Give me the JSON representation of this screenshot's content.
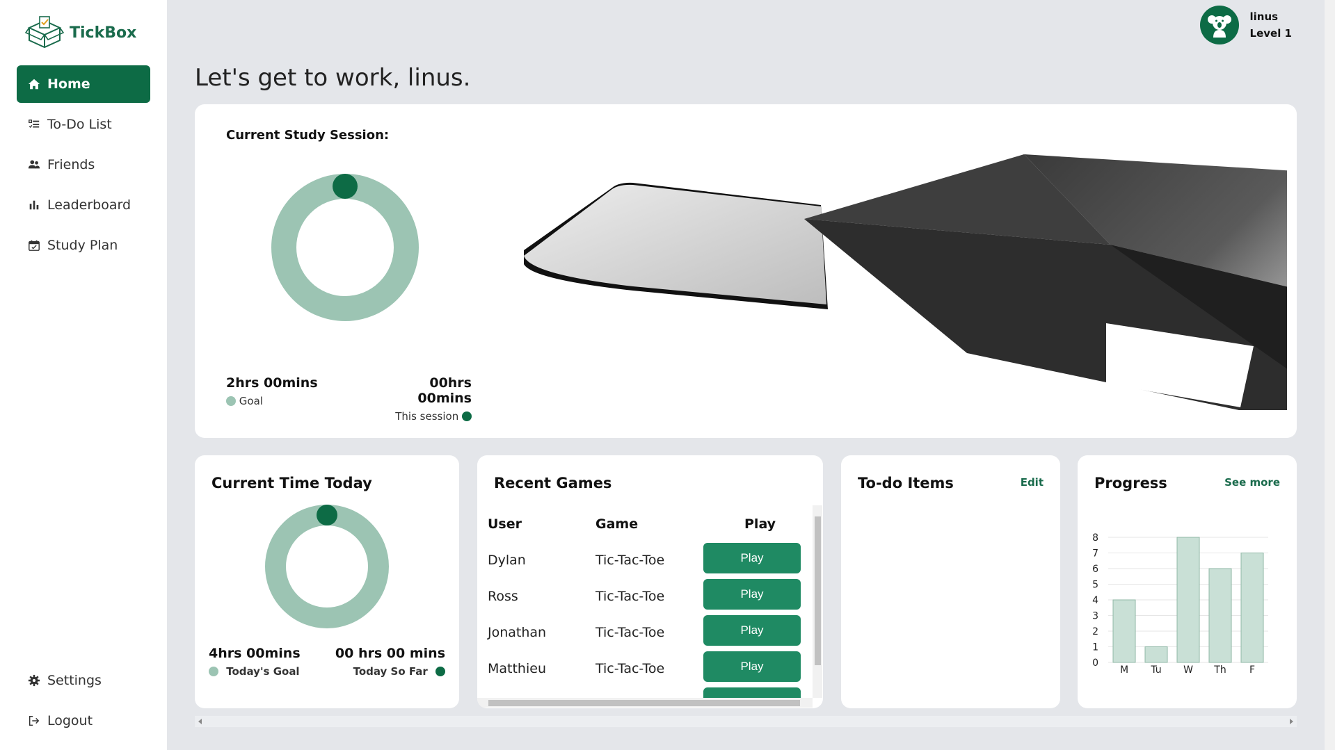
{
  "app": {
    "name": "TickBox"
  },
  "sidebar": {
    "items": [
      {
        "label": "Home",
        "active": true
      },
      {
        "label": "To-Do List"
      },
      {
        "label": "Friends"
      },
      {
        "label": "Leaderboard"
      },
      {
        "label": "Study Plan"
      }
    ],
    "bottom": [
      {
        "label": "Settings"
      },
      {
        "label": "Logout"
      }
    ]
  },
  "user": {
    "name": "linus",
    "level": "Level 1"
  },
  "greeting": "Let's get to work, linus.",
  "session": {
    "title": "Current Study Session:",
    "goal_value": "2hrs 00mins",
    "goal_label": "Goal",
    "session_value": "00hrs 00mins",
    "session_label": "This session",
    "progress": 0
  },
  "today": {
    "title": "Current Time Today",
    "goal_value": "4hrs 00mins",
    "goal_label": "Today's Goal",
    "sofar_value": "00 hrs 00 mins",
    "sofar_label": "Today So Far",
    "progress": 0
  },
  "games": {
    "title": "Recent Games",
    "headers": [
      "User",
      "Game",
      "Play"
    ],
    "rows": [
      {
        "user": "Dylan",
        "game": "Tic-Tac-Toe",
        "action": "Play"
      },
      {
        "user": "Ross",
        "game": "Tic-Tac-Toe",
        "action": "Play"
      },
      {
        "user": "Jonathan",
        "game": "Tic-Tac-Toe",
        "action": "Play"
      },
      {
        "user": "Matthieu",
        "game": "Tic-Tac-Toe",
        "action": "Play"
      }
    ]
  },
  "todo": {
    "title": "To-do Items",
    "edit": "Edit"
  },
  "progress_card": {
    "title": "Progress",
    "see_more": "See more"
  },
  "colors": {
    "primary": "#0d6b45",
    "button": "#1f8a63",
    "ring": "#9cc4b3",
    "bar": "#c9e0d6"
  },
  "chart_data": {
    "type": "bar",
    "categories": [
      "M",
      "Tu",
      "W",
      "Th",
      "F"
    ],
    "values": [
      4,
      1,
      8,
      6,
      7
    ],
    "yticks": [
      0,
      1,
      2,
      3,
      4,
      5,
      6,
      7,
      8
    ],
    "ylim": [
      0,
      8
    ],
    "grid": true
  }
}
